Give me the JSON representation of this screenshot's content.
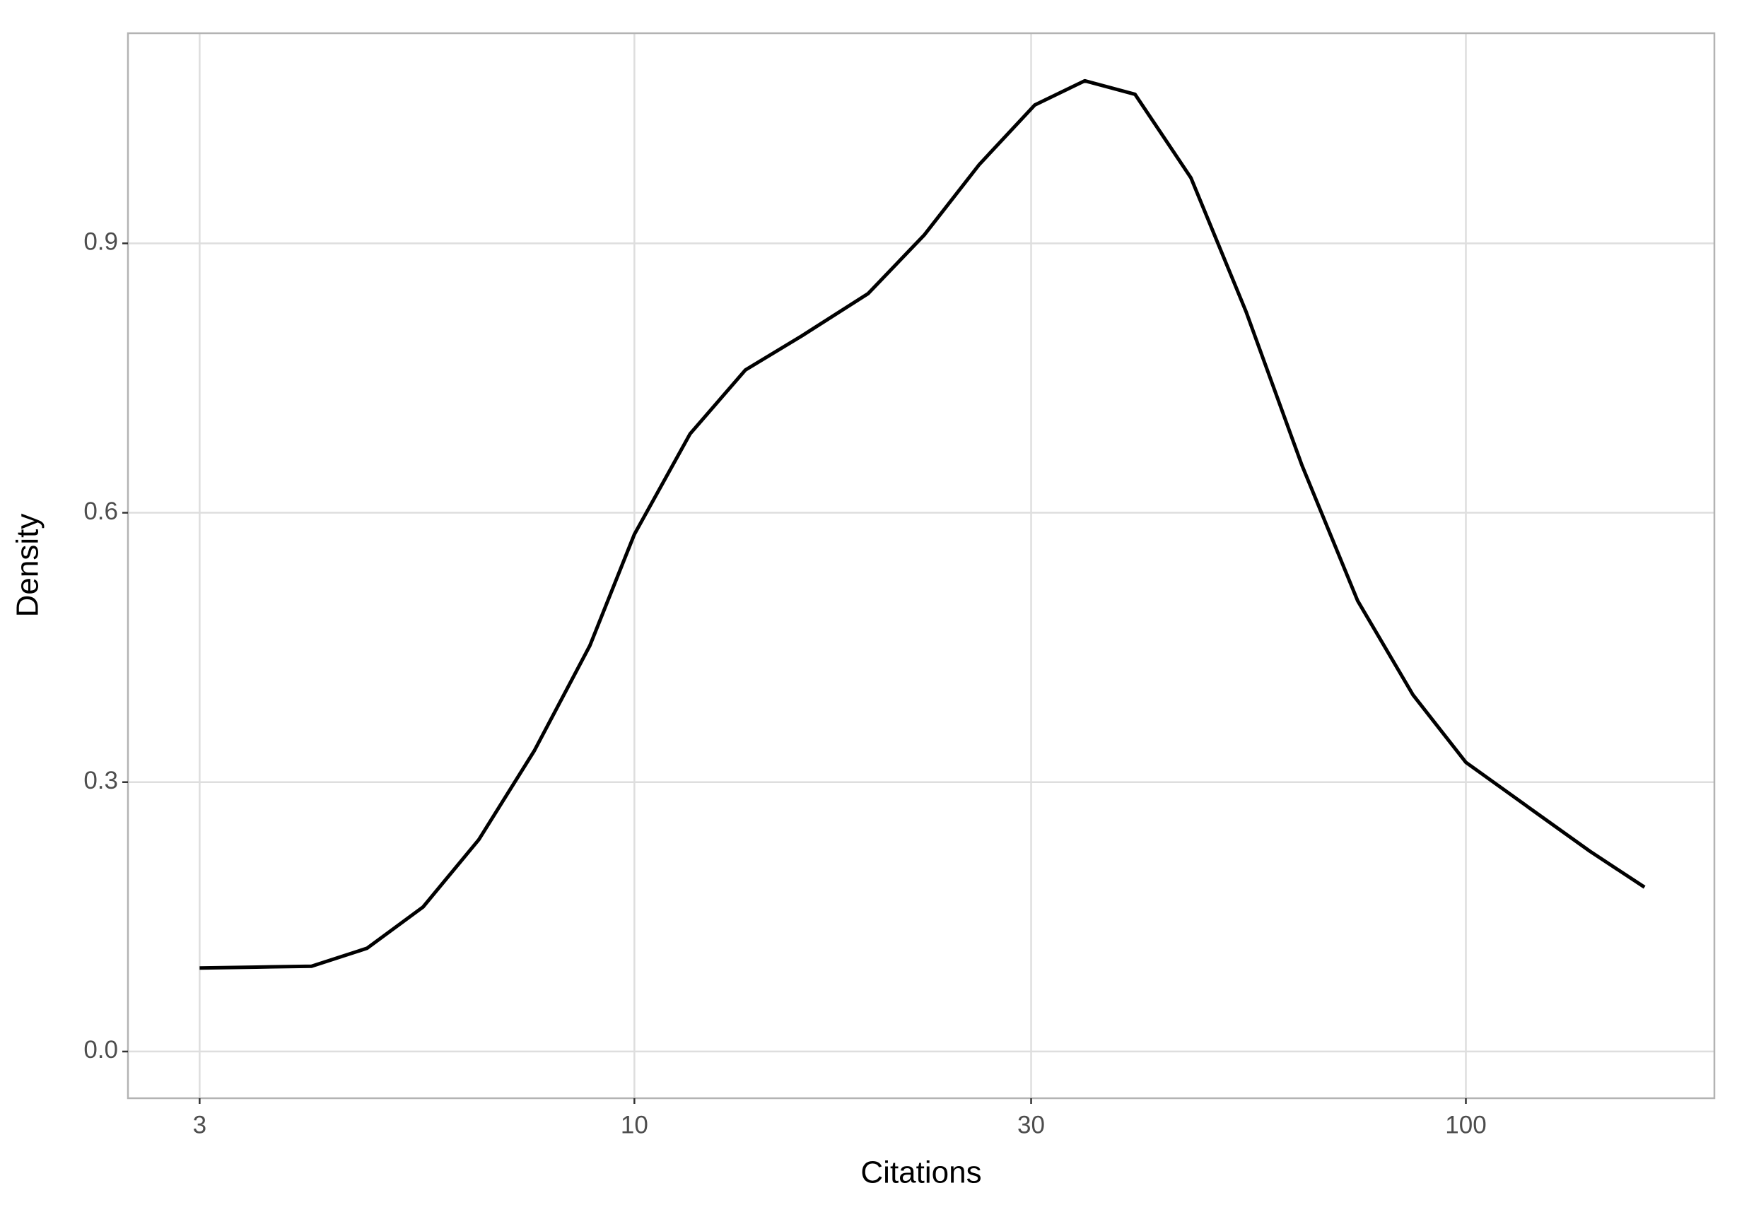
{
  "chart_data": {
    "type": "line",
    "x_label": "Citations",
    "y_label": "Density",
    "x": [
      3.0,
      3.51,
      4.09,
      4.77,
      5.57,
      6.5,
      7.58,
      8.84,
      10,
      11.67,
      13.6,
      15.9,
      19.1,
      22.3,
      26.0,
      30.3,
      34.8,
      40.0,
      46.7,
      54.4,
      63.5,
      74.1,
      86.4,
      100,
      121,
      141,
      164
    ],
    "series": [
      {
        "color": "#000000",
        "values": [
          0.093,
          0.094,
          0.095,
          0.115,
          0.161,
          0.236,
          0.335,
          0.452,
          0.576,
          0.688,
          0.759,
          0.797,
          0.844,
          0.909,
          0.988,
          1.054,
          1.081,
          1.066,
          0.973,
          0.824,
          0.653,
          0.502,
          0.397,
          0.322,
          0.267,
          0.223,
          0.183
        ]
      }
    ],
    "xlim": [
      2.46,
      199
    ],
    "xticks": [
      3,
      10,
      30,
      100
    ],
    "xlog": true,
    "ylim": [
      -0.052,
      1.134
    ],
    "yticks": [
      {
        "value": 0,
        "label": "0.0"
      },
      0.3,
      0.6,
      0.9
    ],
    "grid": true
  }
}
